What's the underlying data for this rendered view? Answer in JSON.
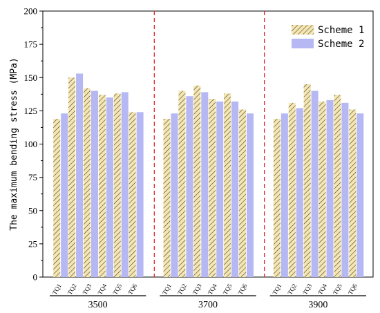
{
  "chart_data": {
    "type": "bar",
    "title": "",
    "xlabel": "",
    "ylabel": "The maximum bending stress (MPa)",
    "ylim": [
      0,
      200
    ],
    "yticks": [
      0,
      25,
      50,
      75,
      100,
      125,
      150,
      175,
      200
    ],
    "legend_position": "top-right",
    "groups": [
      {
        "label": "3500",
        "categories": [
          "TQ1",
          "TQ2",
          "TQ3",
          "TQ4",
          "TQ5",
          "TQ6"
        ]
      },
      {
        "label": "3700",
        "categories": [
          "TQ1",
          "TQ2",
          "TQ3",
          "TQ4",
          "TQ5",
          "TQ6"
        ]
      },
      {
        "label": "3900",
        "categories": [
          "TQ1",
          "TQ2",
          "TQ3",
          "TQ4",
          "TQ5",
          "TQ6"
        ]
      }
    ],
    "series": [
      {
        "name": "Scheme 1",
        "color": "#F5E6B0",
        "hatch": "#333333",
        "values": [
          [
            119,
            150,
            142,
            137,
            138,
            124
          ],
          [
            119,
            140,
            144,
            134,
            138,
            126
          ],
          [
            119,
            131,
            145,
            132,
            137,
            126
          ]
        ]
      },
      {
        "name": "Scheme 2",
        "color": "#B5B8F2",
        "values": [
          [
            123,
            153,
            140,
            135,
            139,
            124
          ],
          [
            123,
            136,
            139,
            132,
            132,
            123
          ],
          [
            123,
            127,
            140,
            133,
            131,
            123
          ]
        ]
      }
    ],
    "separators": {
      "color": "#E8202A",
      "style": "dashed"
    }
  }
}
